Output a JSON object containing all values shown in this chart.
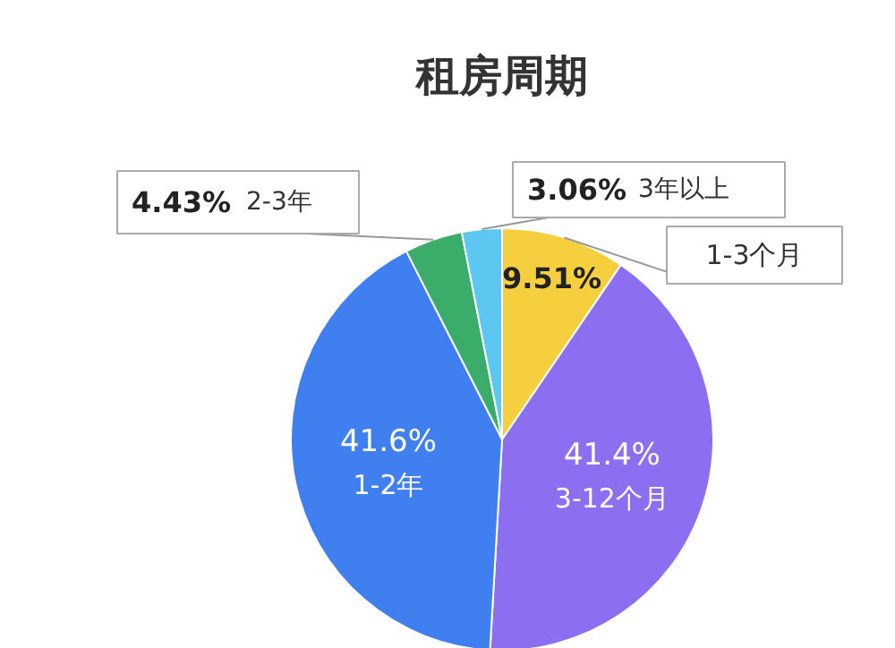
{
  "chart_data": {
    "type": "pie",
    "title": "租房周期",
    "categories": [
      "1-3个月",
      "3-12个月",
      "1-2年",
      "2-3年",
      "3年以上"
    ],
    "values": [
      9.51,
      41.4,
      41.6,
      4.43,
      3.06
    ],
    "colors": [
      "#f6cf3f",
      "#8b6ff0",
      "#3f7ff0",
      "#3aad6a",
      "#5cc8f2"
    ],
    "value_labels": [
      "9.51%",
      "41.4%",
      "41.6%",
      "4.43%",
      "3.06%"
    ]
  }
}
